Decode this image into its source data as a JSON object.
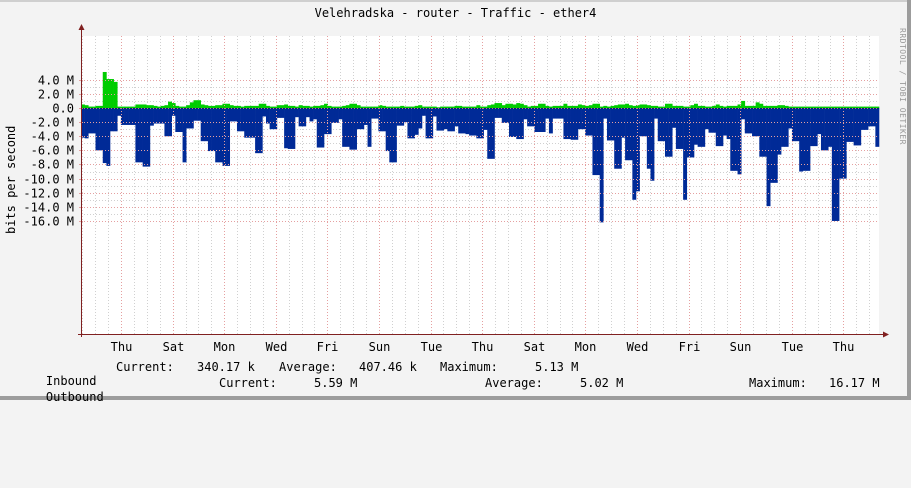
{
  "title": "Velehradska - router - Traffic - ether4",
  "watermark": "RRDTOOL / TOBI OETIKER",
  "y_axis_label": "bits per second",
  "colors": {
    "inbound": "#00cc00",
    "outbound": "#002a97",
    "background": "#f3f3f3",
    "plot_background": "#ffffff",
    "major_grid": "#e5a0a0",
    "minor_grid": "#d0d0d0",
    "axis": "#802020"
  },
  "legend": {
    "inbound": {
      "label": "Inbound",
      "current_label": "Current:",
      "current": "340.17 k",
      "average_label": "Average:",
      "average": "407.46 k",
      "maximum_label": "Maximum:",
      "maximum": "5.13 M"
    },
    "outbound": {
      "label": "Outbound",
      "current_label": "Current:",
      "current": "5.59 M",
      "average_label": "Average:",
      "average": "5.02 M",
      "maximum_label": "Maximum:",
      "maximum": "16.17 M"
    }
  },
  "chart_data": {
    "type": "area",
    "title": "Velehradska - router - Traffic - ether4",
    "xlabel": "",
    "ylabel": "bits per second",
    "ylim": [
      -16000000,
      5000000
    ],
    "y_ticks": [
      {
        "value": 4,
        "label": "4.0 M"
      },
      {
        "value": 2,
        "label": "2.0 M"
      },
      {
        "value": 0,
        "label": "0.0"
      },
      {
        "value": -2,
        "label": "-2.0 M"
      },
      {
        "value": -4,
        "label": "-4.0 M"
      },
      {
        "value": -6,
        "label": "-6.0 M"
      },
      {
        "value": -8,
        "label": "-8.0 M"
      },
      {
        "value": -10,
        "label": "-10.0 M"
      },
      {
        "value": -12,
        "label": "-12.0 M"
      },
      {
        "value": -14,
        "label": "-14.0 M"
      },
      {
        "value": -16,
        "label": "-16.0 M"
      }
    ],
    "x_ticks": [
      "Thu",
      "Sat",
      "Mon",
      "Wed",
      "Fri",
      "Sun",
      "Tue",
      "Thu",
      "Sat",
      "Mon",
      "Wed",
      "Fri",
      "Sun",
      "Tue",
      "Thu"
    ],
    "grid": true,
    "legend_position": "bottom",
    "units": "Mbps (outbound plotted as negative)",
    "series": [
      {
        "name": "Inbound",
        "color": "#00cc00",
        "values": [
          0.5,
          0.4,
          0.2,
          0.2,
          0.3,
          0.3,
          5.1,
          4.1,
          4.1,
          3.7,
          0.2,
          0.2,
          0.2,
          0.2,
          0.2,
          0.5,
          0.5,
          0.5,
          0.4,
          0.4,
          0.3,
          0.2,
          0.3,
          0.4,
          0.9,
          0.7,
          0.3,
          0.2,
          0.2,
          0.4,
          0.8,
          1.1,
          1.1,
          0.5,
          0.4,
          0.3,
          0.3,
          0.4,
          0.4,
          0.6,
          0.6,
          0.4,
          0.3,
          0.3,
          0.2,
          0.3,
          0.3,
          0.3,
          0.3,
          0.6,
          0.6,
          0.3,
          0.2,
          0.2,
          0.4,
          0.4,
          0.5,
          0.3,
          0.3,
          0.2,
          0.4,
          0.3,
          0.3,
          0.2,
          0.3,
          0.3,
          0.4,
          0.6,
          0.3,
          0.2,
          0.2,
          0.2,
          0.3,
          0.4,
          0.6,
          0.6,
          0.4,
          0.2,
          0.2,
          0.2,
          0.2,
          0.2,
          0.4,
          0.3,
          0.2,
          0.2,
          0.2,
          0.2,
          0.3,
          0.2,
          0.2,
          0.2,
          0.3,
          0.4,
          0.2,
          0.2,
          0.2,
          0.2,
          0.1,
          0.2,
          0.2,
          0.2,
          0.2,
          0.3,
          0.3,
          0.2,
          0.2,
          0.2,
          0.2,
          0.4,
          0.2,
          0.2,
          0.4,
          0.5,
          0.7,
          0.7,
          0.4,
          0.6,
          0.6,
          0.5,
          0.7,
          0.6,
          0.4,
          0.2,
          0.3,
          0.3,
          0.6,
          0.6,
          0.3,
          0.2,
          0.3,
          0.3,
          0.3,
          0.6,
          0.3,
          0.3,
          0.3,
          0.5,
          0.4,
          0.3,
          0.4,
          0.6,
          0.6,
          0.2,
          0.3,
          0.2,
          0.3,
          0.4,
          0.5,
          0.5,
          0.6,
          0.4,
          0.3,
          0.4,
          0.5,
          0.5,
          0.4,
          0.3,
          0.3,
          0.2,
          0.2,
          0.6,
          0.6,
          0.3,
          0.3,
          0.3,
          0.2,
          0.2,
          0.4,
          0.6,
          0.3,
          0.3,
          0.2,
          0.2,
          0.3,
          0.5,
          0.3,
          0.2,
          0.3,
          0.3,
          0.3,
          0.5,
          1.0,
          0.3,
          0.3,
          0.3,
          0.8,
          0.6,
          0.3,
          0.3,
          0.3,
          0.3,
          0.4,
          0.4,
          0.3
        ],
        "note": "approximate Mbps, inbound plotted positive"
      },
      {
        "name": "Outbound",
        "color": "#002a97",
        "values": [
          4.2,
          4.3,
          3.6,
          3.6,
          6.0,
          6.0,
          7.8,
          8.2,
          3.3,
          3.3,
          1.1,
          2.4,
          2.4,
          2.4,
          2.4,
          7.7,
          7.7,
          8.3,
          8.3,
          2.5,
          2.2,
          2.2,
          2.2,
          4.0,
          4.0,
          1.1,
          3.4,
          3.4,
          7.7,
          2.9,
          2.9,
          1.8,
          1.8,
          4.7,
          4.7,
          6.1,
          6.1,
          7.7,
          7.7,
          8.2,
          8.2,
          1.9,
          1.9,
          3.3,
          3.3,
          4.2,
          4.2,
          4.2,
          6.4,
          6.4,
          1.2,
          2.2,
          3.0,
          3.0,
          1.4,
          1.4,
          5.7,
          5.8,
          5.8,
          1.3,
          2.6,
          2.6,
          1.3,
          1.9,
          1.6,
          5.6,
          5.6,
          3.7,
          3.7,
          2.1,
          2.1,
          1.6,
          5.5,
          5.5,
          5.9,
          5.9,
          3.0,
          3.0,
          2.4,
          5.5,
          1.5,
          1.5,
          3.3,
          3.3,
          6.1,
          7.7,
          7.7,
          2.5,
          2.5,
          2.0,
          4.3,
          4.3,
          3.8,
          2.9,
          1.1,
          4.3,
          4.3,
          1.2,
          3.2,
          3.2,
          3.0,
          3.3,
          3.3,
          2.6,
          3.6,
          3.6,
          3.7,
          3.9,
          3.9,
          4.3,
          4.3,
          3.1,
          7.2,
          7.2,
          1.4,
          1.4,
          2.1,
          2.1,
          4.1,
          4.1,
          4.4,
          4.4,
          1.6,
          2.6,
          2.6,
          3.4,
          3.4,
          3.4,
          1.5,
          3.6,
          1.5,
          1.5,
          1.5,
          4.4,
          4.4,
          4.5,
          4.5,
          3.0,
          3.0,
          3.9,
          3.9,
          9.5,
          9.5,
          16.2,
          1.5,
          4.6,
          4.6,
          8.6,
          8.6,
          4.2,
          7.4,
          7.4,
          13.0,
          11.8,
          4.0,
          4.0,
          8.6,
          10.3,
          1.5,
          4.7,
          4.7,
          6.9,
          6.9,
          2.8,
          5.8,
          5.8,
          13.0,
          7.0,
          7.0,
          5.2,
          5.5,
          5.5,
          3.0,
          3.5,
          3.5,
          5.4,
          5.4,
          3.9,
          4.4,
          8.9,
          8.9,
          9.4,
          1.6,
          3.6,
          3.6,
          4.0,
          4.0,
          6.9,
          6.9,
          13.9,
          10.6,
          10.6,
          6.6,
          5.5,
          5.5,
          2.9,
          4.7,
          4.7,
          9.0,
          8.9,
          8.9,
          5.4,
          5.4,
          3.7,
          6.0,
          6.0,
          5.5,
          16.0,
          16.0,
          10.0,
          10.0,
          4.8,
          4.8,
          5.3,
          5.3,
          3.1,
          3.1,
          2.6,
          2.6,
          5.5
        ],
        "note": "approximate Mbps magnitude, outbound plotted negative"
      }
    ]
  }
}
